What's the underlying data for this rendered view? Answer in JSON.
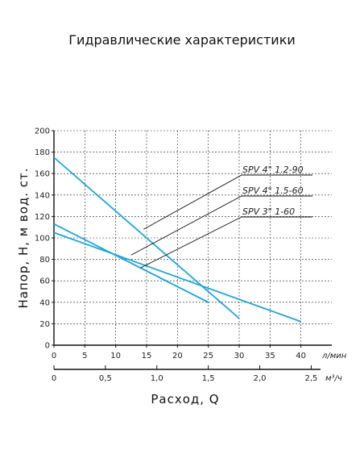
{
  "page": {
    "title": "Гидравлические характеристики"
  },
  "chart_data": {
    "type": "line",
    "title": "Гидравлические характеристики",
    "ylabel": "Напор, H, м вод. ст.",
    "xlabel": "Расход, Q",
    "x_unit": "л/мин",
    "x2_unit": "м³/ч",
    "xlim": [
      0,
      45
    ],
    "ylim": [
      0,
      200
    ],
    "x_ticks": [
      "0",
      "5",
      "10",
      "15",
      "20",
      "25",
      "30",
      "35",
      "40"
    ],
    "x2_ticks": [
      "0",
      "0,5",
      "1,0",
      "1,5",
      "2,0",
      "2,5"
    ],
    "y_ticks": [
      "0",
      "20",
      "40",
      "60",
      "80",
      "100",
      "120",
      "140",
      "160",
      "180",
      "200"
    ],
    "grid": true,
    "series": [
      {
        "name": "SPV 4\" 1.2-90",
        "x": [
          0,
          30
        ],
        "y": [
          175,
          25
        ]
      },
      {
        "name": "SPV 4\" 1.5-60",
        "x": [
          0,
          40
        ],
        "y": [
          105,
          22
        ]
      },
      {
        "name": "SPV 3\" 1-60",
        "x": [
          0,
          25
        ],
        "y": [
          113,
          40
        ]
      }
    ],
    "annotations": [
      {
        "label": "SPV 4\" 1.2-90",
        "point": [
          14.5,
          108
        ]
      },
      {
        "label": "SPV 4\" 1.5-60",
        "point": [
          12.5,
          84
        ]
      },
      {
        "label": "SPV 3\" 1-60",
        "point": [
          14,
          72
        ]
      }
    ],
    "line_color": "#1ba6dd"
  }
}
